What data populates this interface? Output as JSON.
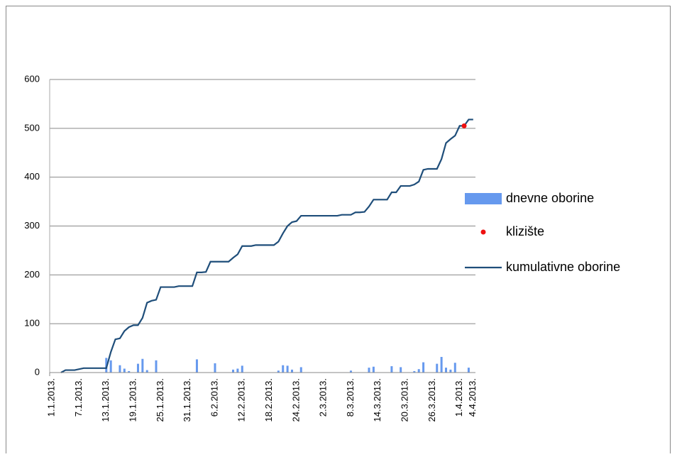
{
  "chart_data": {
    "type": "combo",
    "categories": [
      "1.1.2013.",
      null,
      null,
      null,
      null,
      null,
      "7.1.2013.",
      null,
      null,
      null,
      null,
      null,
      "13.1.2013.",
      null,
      null,
      null,
      null,
      null,
      "19.1.2013.",
      null,
      null,
      null,
      null,
      null,
      "25.1.2013.",
      null,
      null,
      null,
      null,
      null,
      "31.1.2013.",
      null,
      null,
      null,
      null,
      null,
      "6.2.2013.",
      null,
      null,
      null,
      null,
      null,
      "12.2.2013.",
      null,
      null,
      null,
      null,
      null,
      "18.2.2013.",
      null,
      null,
      null,
      null,
      null,
      "24.2.2013.",
      null,
      null,
      null,
      null,
      null,
      "2.3.2013.",
      null,
      null,
      null,
      null,
      null,
      "8.3.2013.",
      null,
      null,
      null,
      null,
      null,
      "14.3.2013.",
      null,
      null,
      null,
      null,
      null,
      "20.3.2013.",
      null,
      null,
      null,
      null,
      null,
      "26.3.2013.",
      null,
      null,
      null,
      null,
      null,
      "1.4.2013.",
      null,
      null,
      "4.4.2013."
    ],
    "series": [
      {
        "name": "dnevne oborine",
        "type": "bar",
        "color": "#6699ee",
        "values": [
          0,
          0,
          0,
          0,
          0,
          0,
          0,
          0,
          0,
          0,
          0,
          0,
          30,
          25,
          0,
          15,
          8,
          3,
          0,
          18,
          28,
          5,
          0,
          25,
          0,
          0,
          0,
          0,
          0,
          0,
          0,
          0,
          27,
          0,
          0,
          0,
          19,
          0,
          0,
          0,
          6,
          8,
          14,
          0,
          0,
          0,
          0,
          0,
          0,
          0,
          4,
          15,
          14,
          6,
          0,
          11,
          0,
          0,
          0,
          0,
          0,
          0,
          0,
          0,
          0,
          0,
          4,
          0,
          0,
          0,
          10,
          12,
          0,
          0,
          0,
          13,
          0,
          11,
          0,
          0,
          3,
          7,
          21,
          0,
          0,
          18,
          32,
          10,
          6,
          20,
          0,
          0,
          10,
          0
        ]
      },
      {
        "name": "klizište",
        "type": "scatter",
        "color": "#ee1111",
        "values": [
          null,
          null,
          null,
          null,
          null,
          null,
          null,
          null,
          null,
          null,
          null,
          null,
          null,
          null,
          null,
          null,
          null,
          null,
          null,
          null,
          null,
          null,
          null,
          null,
          null,
          null,
          null,
          null,
          null,
          null,
          null,
          null,
          null,
          null,
          null,
          null,
          null,
          null,
          null,
          null,
          null,
          null,
          null,
          null,
          null,
          null,
          null,
          null,
          null,
          null,
          null,
          null,
          null,
          null,
          null,
          null,
          null,
          null,
          null,
          null,
          null,
          null,
          null,
          null,
          null,
          null,
          null,
          null,
          null,
          null,
          null,
          null,
          null,
          null,
          null,
          null,
          null,
          null,
          null,
          null,
          null,
          null,
          null,
          null,
          null,
          null,
          null,
          null,
          null,
          null,
          null,
          505,
          null,
          null
        ]
      },
      {
        "name": "kumulativne oborine",
        "type": "line",
        "color": "#1f4e7a",
        "values": [
          null,
          null,
          0,
          5,
          5,
          5,
          7,
          9,
          9,
          9,
          9,
          9,
          9,
          42,
          68,
          70,
          85,
          93,
          97,
          97,
          112,
          143,
          147,
          149,
          175,
          175,
          175,
          175,
          177,
          177,
          177,
          177,
          205,
          205,
          206,
          227,
          227,
          227,
          227,
          227,
          235,
          242,
          259,
          259,
          259,
          261,
          261,
          261,
          261,
          261,
          268,
          285,
          300,
          308,
          310,
          321,
          321,
          321,
          321,
          321,
          321,
          321,
          321,
          321,
          323,
          323,
          323,
          328,
          328,
          329,
          340,
          354,
          354,
          354,
          354,
          369,
          369,
          382,
          382,
          382,
          385,
          391,
          415,
          417,
          417,
          417,
          437,
          470,
          478,
          485,
          505,
          505,
          518,
          518
        ]
      }
    ],
    "ylim": [
      0,
      600
    ],
    "yticks": [
      0,
      100,
      200,
      300,
      400,
      500,
      600
    ],
    "grid": true,
    "legend": "right"
  }
}
